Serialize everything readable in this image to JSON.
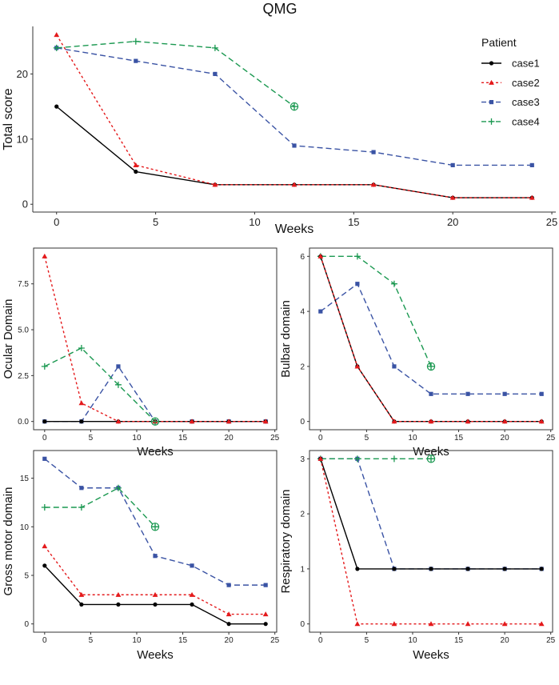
{
  "figure_title": "QMG",
  "legend": {
    "title": "Patient",
    "entries": [
      "case1",
      "case2",
      "case3",
      "case4"
    ]
  },
  "series_styles": [
    {
      "name": "case1",
      "color": "#000000",
      "dash": "solid",
      "marker": "circle"
    },
    {
      "name": "case2",
      "color": "#e41a1c",
      "dash": "dotted",
      "marker": "triangle"
    },
    {
      "name": "case3",
      "color": "#3a53a4",
      "dash": "dashed",
      "marker": "square"
    },
    {
      "name": "case4",
      "color": "#1a9850",
      "dash": "dashed",
      "marker": "plus"
    }
  ],
  "chart_data": [
    {
      "id": "total",
      "type": "line",
      "title": "QMG",
      "xlabel": "Weeks",
      "ylabel": "Total score",
      "xlim": [
        -1.2,
        25.2
      ],
      "ylim": [
        -1.2,
        27.3
      ],
      "xticks": [
        0,
        5,
        10,
        15,
        20,
        25
      ],
      "yticks": [
        0,
        10,
        20
      ],
      "ytick_labels": [
        "0",
        "10",
        "20"
      ],
      "series": [
        {
          "name": "case1",
          "x": [
            0,
            4,
            8,
            12,
            16,
            20,
            24
          ],
          "y": [
            15,
            5,
            3,
            3,
            3,
            1,
            1
          ]
        },
        {
          "name": "case2",
          "x": [
            0,
            4,
            8,
            12,
            16,
            20,
            24
          ],
          "y": [
            26,
            6,
            3,
            3,
            3,
            1,
            1
          ]
        },
        {
          "name": "case3",
          "x": [
            0,
            4,
            8,
            12,
            16,
            20,
            24
          ],
          "y": [
            24,
            22,
            20,
            9,
            8,
            6,
            6
          ]
        },
        {
          "name": "case4",
          "x": [
            0,
            4,
            8,
            12
          ],
          "y": [
            24,
            25,
            24,
            15
          ]
        }
      ],
      "end_markers": [
        {
          "x": 12,
          "y": 15,
          "series": "case4"
        }
      ]
    },
    {
      "id": "ocular",
      "type": "line",
      "xlabel": "Weeks",
      "ylabel": "Ocular Domain",
      "xlim": [
        -1.2,
        25.2
      ],
      "ylim": [
        -0.45,
        9.45
      ],
      "xticks": [
        0,
        5,
        10,
        15,
        20,
        25
      ],
      "yticks": [
        0,
        2.5,
        5,
        7.5
      ],
      "ytick_labels": [
        "0.0",
        "2.5",
        "5.0",
        "7.5"
      ],
      "series": [
        {
          "name": "case1",
          "x": [
            0,
            4,
            8,
            12,
            16,
            20,
            24
          ],
          "y": [
            0,
            0,
            0,
            0,
            0,
            0,
            0
          ]
        },
        {
          "name": "case2",
          "x": [
            0,
            4,
            8,
            12,
            16,
            20,
            24
          ],
          "y": [
            9,
            1,
            0,
            0,
            0,
            0,
            0
          ]
        },
        {
          "name": "case3",
          "x": [
            0,
            4,
            8,
            12,
            16,
            20,
            24
          ],
          "y": [
            0,
            0,
            3,
            0,
            0,
            0,
            0
          ]
        },
        {
          "name": "case4",
          "x": [
            0,
            4,
            8,
            12
          ],
          "y": [
            3,
            4,
            2,
            0
          ]
        }
      ],
      "end_markers": [
        {
          "x": 12,
          "y": 0,
          "series": "case4"
        }
      ]
    },
    {
      "id": "bulbar",
      "type": "line",
      "xlabel": "Weeks",
      "ylabel": "Bulbar domain",
      "xlim": [
        -1.2,
        25.2
      ],
      "ylim": [
        -0.3,
        6.3
      ],
      "xticks": [
        0,
        5,
        10,
        15,
        20,
        25
      ],
      "yticks": [
        0,
        2,
        4,
        6
      ],
      "ytick_labels": [
        "0",
        "2",
        "4",
        "6"
      ],
      "series": [
        {
          "name": "case1",
          "x": [
            0,
            4,
            8,
            12,
            16,
            20,
            24
          ],
          "y": [
            6,
            2,
            0,
            0,
            0,
            0,
            0
          ]
        },
        {
          "name": "case2",
          "x": [
            0,
            4,
            8,
            12,
            16,
            20,
            24
          ],
          "y": [
            6,
            2,
            0,
            0,
            0,
            0,
            0
          ]
        },
        {
          "name": "case3",
          "x": [
            0,
            4,
            8,
            12,
            16,
            20,
            24
          ],
          "y": [
            4,
            5,
            2,
            1,
            1,
            1,
            1
          ]
        },
        {
          "name": "case4",
          "x": [
            0,
            4,
            8,
            12
          ],
          "y": [
            6,
            6,
            5,
            2
          ]
        }
      ],
      "end_markers": [
        {
          "x": 12,
          "y": 2,
          "series": "case4"
        }
      ]
    },
    {
      "id": "gross",
      "type": "line",
      "xlabel": "Weeks",
      "ylabel": "Gross motor domain",
      "xlim": [
        -1.2,
        25.2
      ],
      "ylim": [
        -0.85,
        17.85
      ],
      "xticks": [
        0,
        5,
        10,
        15,
        20,
        25
      ],
      "yticks": [
        0,
        5,
        10,
        15
      ],
      "ytick_labels": [
        "0",
        "5",
        "10",
        "15"
      ],
      "series": [
        {
          "name": "case1",
          "x": [
            0,
            4,
            8,
            12,
            16,
            20,
            24
          ],
          "y": [
            6,
            2,
            2,
            2,
            2,
            0,
            0
          ]
        },
        {
          "name": "case2",
          "x": [
            0,
            4,
            8,
            12,
            16,
            20,
            24
          ],
          "y": [
            8,
            3,
            3,
            3,
            3,
            1,
            1
          ]
        },
        {
          "name": "case3",
          "x": [
            0,
            4,
            8,
            12,
            16,
            20,
            24
          ],
          "y": [
            17,
            14,
            14,
            7,
            6,
            4,
            4
          ]
        },
        {
          "name": "case4",
          "x": [
            0,
            4,
            8,
            12
          ],
          "y": [
            12,
            12,
            14,
            10
          ]
        }
      ],
      "end_markers": [
        {
          "x": 12,
          "y": 10,
          "series": "case4"
        }
      ]
    },
    {
      "id": "respiratory",
      "type": "line",
      "xlabel": "Weeks",
      "ylabel": "Respiratory domain",
      "xlim": [
        -1.2,
        25.2
      ],
      "ylim": [
        -0.15,
        3.15
      ],
      "xticks": [
        0,
        5,
        10,
        15,
        20,
        25
      ],
      "yticks": [
        0,
        1,
        2,
        3
      ],
      "ytick_labels": [
        "0",
        "1",
        "2",
        "3"
      ],
      "series": [
        {
          "name": "case1",
          "x": [
            0,
            4,
            8,
            12,
            16,
            20,
            24
          ],
          "y": [
            3,
            1,
            1,
            1,
            1,
            1,
            1
          ]
        },
        {
          "name": "case2",
          "x": [
            0,
            4,
            8,
            12,
            16,
            20,
            24
          ],
          "y": [
            3,
            0,
            0,
            0,
            0,
            0,
            0
          ]
        },
        {
          "name": "case3",
          "x": [
            0,
            4,
            8,
            12,
            16,
            20,
            24
          ],
          "y": [
            3,
            3,
            1,
            1,
            1,
            1,
            1
          ]
        },
        {
          "name": "case4",
          "x": [
            0,
            4,
            8,
            12
          ],
          "y": [
            3,
            3,
            3,
            3
          ]
        }
      ],
      "end_markers": [
        {
          "x": 12,
          "y": 3,
          "series": "case4"
        }
      ]
    }
  ]
}
